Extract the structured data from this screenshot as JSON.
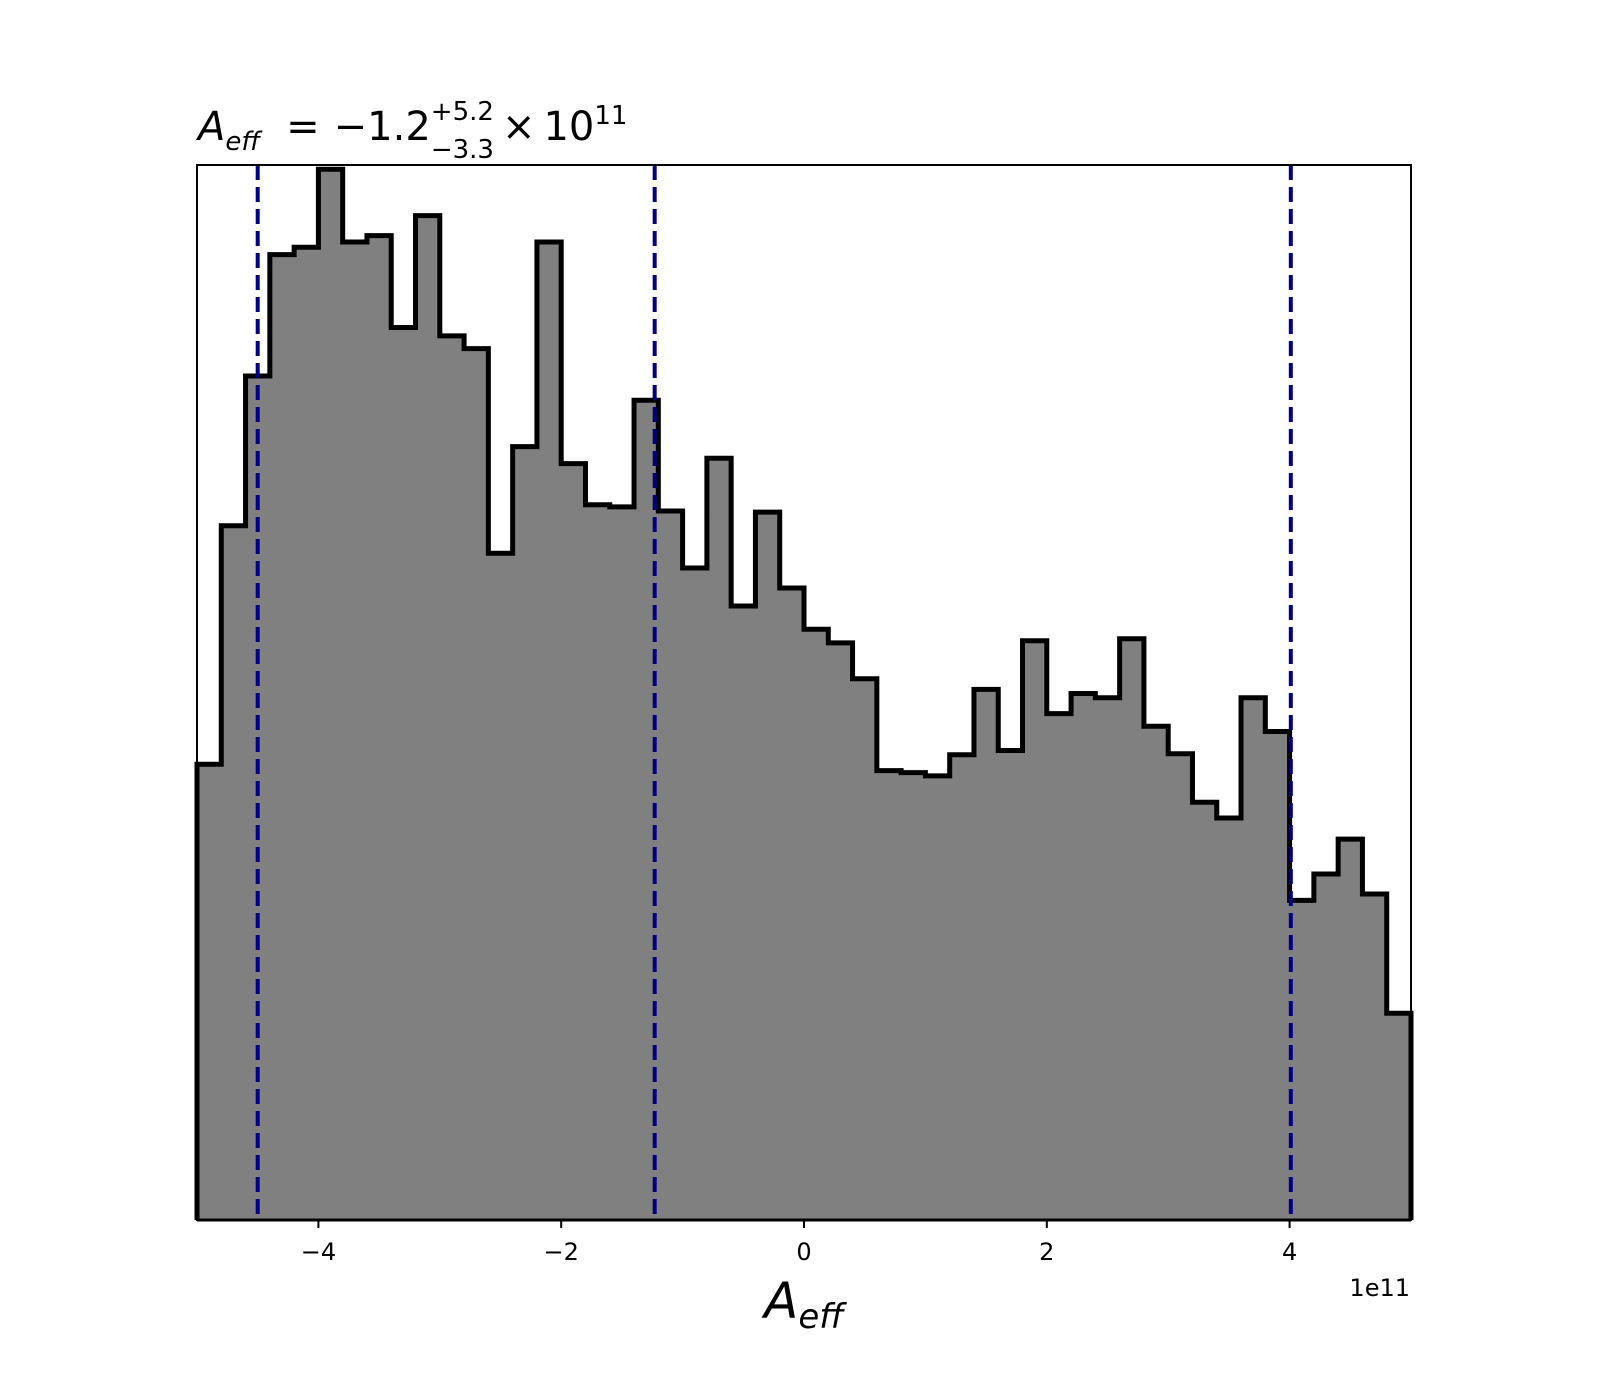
{
  "chart_data": {
    "type": "histogram",
    "title": {
      "symbol": "A",
      "symbol_subscript": "eff",
      "equals": "=",
      "median": "−1.2",
      "upper": "+5.2",
      "lower": "−3.3",
      "times": "×",
      "base": "10",
      "exponent": "11"
    },
    "xlabel": {
      "symbol": "A",
      "subscript": "eff"
    },
    "x_offset_text": "1e11",
    "xlim": [
      -5.0,
      5.0
    ],
    "ylim": [
      0,
      1
    ],
    "x_scale_multiplier": 100000000000.0,
    "xticks": [
      -4,
      -2,
      0,
      2,
      4
    ],
    "xtick_labels": [
      "−4",
      "−2",
      "0",
      "2",
      "4"
    ],
    "yticks": [],
    "grid": false,
    "bin_width": 0.2,
    "bin_edges_start": -5.0,
    "bin_heights": [
      0.432,
      0.658,
      0.8,
      0.915,
      0.922,
      0.996,
      0.927,
      0.933,
      0.846,
      0.952,
      0.838,
      0.826,
      0.632,
      0.733,
      0.927,
      0.717,
      0.678,
      0.676,
      0.777,
      0.672,
      0.618,
      0.722,
      0.582,
      0.671,
      0.599,
      0.56,
      0.547,
      0.513,
      0.426,
      0.424,
      0.421,
      0.441,
      0.503,
      0.445,
      0.549,
      0.48,
      0.499,
      0.495,
      0.551,
      0.468,
      0.442,
      0.396,
      0.381,
      0.495,
      0.463,
      0.303,
      0.328,
      0.361,
      0.309,
      0.196
    ],
    "quantile_lines": [
      -4.5,
      -1.23,
      4.01
    ],
    "colors": {
      "fill": "#808080",
      "edge": "#000000",
      "quantile": "#000080",
      "frame": "#000000"
    }
  }
}
